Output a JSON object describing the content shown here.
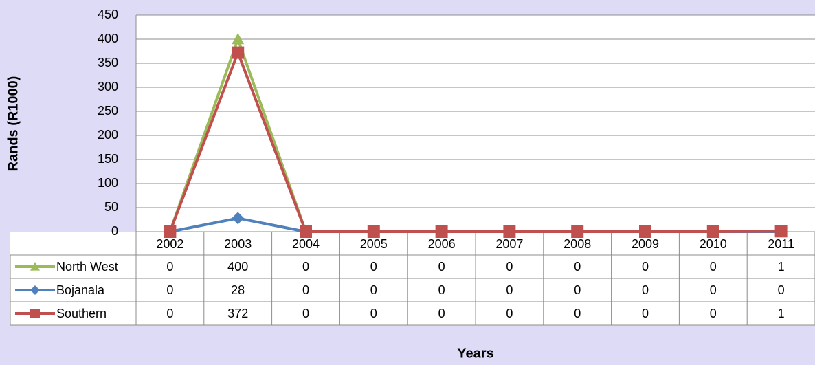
{
  "chart_data": {
    "type": "line",
    "x_label": "Years",
    "y_label": "Rands (R1000)",
    "categories": [
      "2002",
      "2003",
      "2004",
      "2005",
      "2006",
      "2007",
      "2008",
      "2009",
      "2010",
      "2011"
    ],
    "series": [
      {
        "name": "North West",
        "color": "#9bbb59",
        "marker": "triangle",
        "values": [
          0,
          400,
          0,
          0,
          0,
          0,
          0,
          0,
          0,
          1
        ]
      },
      {
        "name": "Bojanala",
        "color": "#4f81bd",
        "marker": "diamond",
        "values": [
          0,
          28,
          0,
          0,
          0,
          0,
          0,
          0,
          0,
          0
        ]
      },
      {
        "name": "Southern",
        "color": "#c0504d",
        "marker": "square",
        "values": [
          0,
          372,
          0,
          0,
          0,
          0,
          0,
          0,
          0,
          1
        ]
      }
    ],
    "ylim": [
      0,
      450
    ],
    "yticks": [
      0,
      50,
      100,
      150,
      200,
      250,
      300,
      350,
      400,
      450
    ],
    "grid": true
  }
}
